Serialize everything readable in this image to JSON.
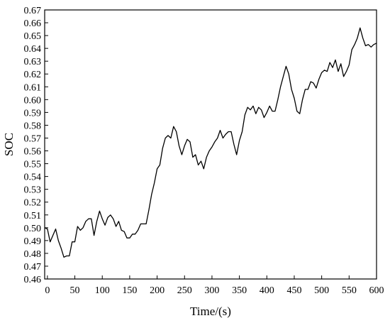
{
  "chart_data": {
    "type": "line",
    "title": "",
    "xlabel": "Time/(s)",
    "ylabel": "SOC",
    "xlim": [
      -5,
      600
    ],
    "ylim": [
      0.46,
      0.67
    ],
    "xticks": [
      0,
      50,
      100,
      150,
      200,
      250,
      300,
      350,
      400,
      450,
      500,
      550,
      600
    ],
    "yticks": [
      0.46,
      0.47,
      0.48,
      0.49,
      0.5,
      0.51,
      0.52,
      0.53,
      0.54,
      0.55,
      0.56,
      0.57,
      0.58,
      0.59,
      0.6,
      0.61,
      0.62,
      0.63,
      0.64,
      0.65,
      0.66,
      0.67
    ],
    "grid": false,
    "legend": "none",
    "line_color": "#000000",
    "series": [
      {
        "x": [
          -5,
          0,
          5,
          10,
          15,
          20,
          25,
          30,
          35,
          40,
          45,
          50,
          55,
          60,
          65,
          70,
          75,
          80,
          85,
          90,
          95,
          100,
          105,
          110,
          115,
          120,
          125,
          130,
          135,
          140,
          145,
          150,
          155,
          160,
          165,
          170,
          175,
          180,
          185,
          190,
          195,
          200,
          205,
          210,
          215,
          220,
          225,
          230,
          235,
          240,
          245,
          250,
          255,
          260,
          265,
          270,
          275,
          280,
          285,
          290,
          295,
          300,
          305,
          310,
          315,
          320,
          325,
          330,
          335,
          340,
          345,
          350,
          355,
          360,
          365,
          370,
          375,
          380,
          385,
          390,
          395,
          400,
          405,
          410,
          415,
          420,
          425,
          430,
          435,
          440,
          445,
          450,
          455,
          460,
          465,
          470,
          475,
          480,
          485,
          490,
          495,
          500,
          505,
          510,
          515,
          520,
          525,
          530,
          535,
          540,
          545,
          550,
          555,
          560,
          565,
          570,
          575,
          580,
          585,
          590,
          595,
          600
        ],
        "values": [
          0.5,
          0.499,
          0.489,
          0.494,
          0.499,
          0.49,
          0.484,
          0.477,
          0.478,
          0.478,
          0.489,
          0.489,
          0.501,
          0.498,
          0.5,
          0.505,
          0.507,
          0.507,
          0.494,
          0.505,
          0.513,
          0.507,
          0.502,
          0.508,
          0.51,
          0.507,
          0.501,
          0.505,
          0.498,
          0.497,
          0.492,
          0.492,
          0.495,
          0.495,
          0.498,
          0.503,
          0.503,
          0.503,
          0.514,
          0.526,
          0.535,
          0.546,
          0.549,
          0.562,
          0.57,
          0.572,
          0.57,
          0.579,
          0.575,
          0.564,
          0.557,
          0.564,
          0.569,
          0.567,
          0.555,
          0.557,
          0.549,
          0.552,
          0.546,
          0.555,
          0.56,
          0.563,
          0.567,
          0.57,
          0.576,
          0.57,
          0.573,
          0.575,
          0.575,
          0.565,
          0.557,
          0.568,
          0.575,
          0.588,
          0.594,
          0.592,
          0.595,
          0.589,
          0.594,
          0.592,
          0.586,
          0.59,
          0.595,
          0.591,
          0.591,
          0.6,
          0.61,
          0.618,
          0.626,
          0.62,
          0.608,
          0.601,
          0.591,
          0.589,
          0.6,
          0.608,
          0.608,
          0.614,
          0.613,
          0.609,
          0.616,
          0.621,
          0.623,
          0.622,
          0.629,
          0.625,
          0.631,
          0.622,
          0.628,
          0.618,
          0.622,
          0.627,
          0.639,
          0.643,
          0.648,
          0.656,
          0.648,
          0.642,
          0.643,
          0.641,
          0.643,
          0.644
        ]
      }
    ]
  }
}
